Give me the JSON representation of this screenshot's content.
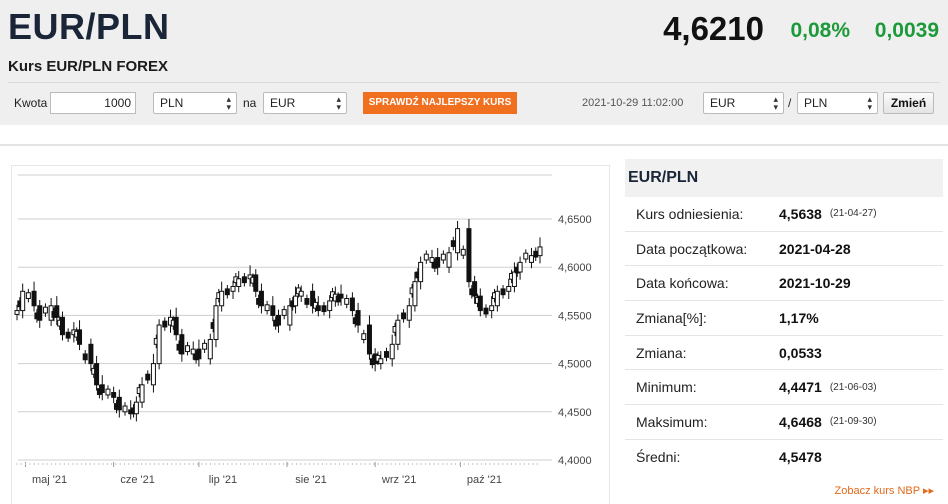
{
  "header": {
    "pair": "EUR/PLN",
    "subtitle": "Kurs EUR/PLN FOREX",
    "rate": "4,6210",
    "change_pct": "0,08%",
    "change_abs": "0,0039"
  },
  "converter": {
    "amount_label": "Kwota",
    "amount_value": "1000",
    "from_currency": "PLN",
    "to_label": "na",
    "to_currency": "EUR",
    "check_button": "SPRAWDŹ NAJLEPSZY KURS",
    "timestamp": "2021-10-29 11:02:00",
    "pair_from": "EUR",
    "pair_sep": "/",
    "pair_to": "PLN",
    "change_button": "Zmień"
  },
  "stats": {
    "title": "EUR/PLN",
    "rows": [
      {
        "label": "Kurs odniesienia:",
        "value": "4,5638",
        "date": "(21-04-27)"
      },
      {
        "label": "Data początkowa:",
        "value": "2021-04-28",
        "date": ""
      },
      {
        "label": "Data końcowa:",
        "value": "2021-10-29",
        "date": ""
      },
      {
        "label": "Zmiana[%]:",
        "value": "1,17%",
        "date": ""
      },
      {
        "label": "Zmiana:",
        "value": "0,0533",
        "date": ""
      },
      {
        "label": "Minimum:",
        "value": "4,4471",
        "date": "(21-06-03)"
      },
      {
        "label": "Maksimum:",
        "value": "4,6468",
        "date": "(21-09-30)"
      },
      {
        "label": "Średni:",
        "value": "4,5478",
        "date": ""
      }
    ],
    "nbp_link": "Zobacz kurs NBP ▸▸"
  },
  "colors": {
    "title": "#1a2538",
    "positive": "#1c9a3a",
    "button_orange": "#f07020",
    "link_orange": "#e06a1a",
    "candle": "#111111"
  },
  "chart_data": {
    "type": "line",
    "subtype": "candlestick",
    "series": [
      {
        "x": [
          "2021-04-28",
          "2021-04-30",
          "2021-05-04",
          "2021-05-06",
          "2021-05-10",
          "2021-05-12",
          "2021-05-14",
          "2021-05-18",
          "2021-05-20",
          "2021-05-24",
          "2021-05-26",
          "2021-05-28",
          "2021-06-01",
          "2021-06-03",
          "2021-06-07",
          "2021-06-09",
          "2021-06-11",
          "2021-06-15",
          "2021-06-17",
          "2021-06-21",
          "2021-06-23",
          "2021-06-25",
          "2021-06-29",
          "2021-07-01",
          "2021-07-05",
          "2021-07-07",
          "2021-07-09",
          "2021-07-13",
          "2021-07-15",
          "2021-07-19",
          "2021-07-21",
          "2021-07-23",
          "2021-07-27",
          "2021-07-29",
          "2021-08-02",
          "2021-08-04",
          "2021-08-06",
          "2021-08-10",
          "2021-08-12",
          "2021-08-16",
          "2021-08-18",
          "2021-08-20",
          "2021-08-24",
          "2021-08-26",
          "2021-08-30",
          "2021-09-01",
          "2021-09-03",
          "2021-09-07",
          "2021-09-09",
          "2021-09-13",
          "2021-09-15",
          "2021-09-17",
          "2021-09-21",
          "2021-09-23",
          "2021-09-27",
          "2021-09-30",
          "2021-10-04",
          "2021-10-06",
          "2021-10-08",
          "2021-10-12",
          "2021-10-14",
          "2021-10-18",
          "2021-10-20",
          "2021-10-22",
          "2021-10-26",
          "2021-10-29"
        ],
        "y": [
          4.555,
          4.575,
          4.56,
          4.545,
          4.56,
          4.548,
          4.53,
          4.535,
          4.52,
          4.5,
          4.478,
          4.47,
          4.465,
          4.452,
          4.448,
          4.46,
          4.478,
          4.5,
          4.54,
          4.548,
          4.53,
          4.51,
          4.515,
          4.505,
          4.525,
          4.56,
          4.575,
          4.58,
          4.588,
          4.592,
          4.575,
          4.56,
          4.55,
          4.54,
          4.56,
          4.57,
          4.575,
          4.56,
          4.555,
          4.565,
          4.572,
          4.568,
          4.555,
          4.54,
          4.51,
          4.5,
          4.505,
          4.52,
          4.545,
          4.56,
          4.585,
          4.605,
          4.61,
          4.6,
          4.615,
          4.64,
          4.585,
          4.57,
          4.555,
          4.56,
          4.575,
          4.58,
          4.595,
          4.605,
          4.612,
          4.621
        ]
      }
    ],
    "xlabel": "",
    "ylabel": "",
    "xticks": [
      "maj '21",
      "cze '21",
      "lip '21",
      "sie '21",
      "wrz '21",
      "paź '21"
    ],
    "yticks": [
      "4,6500",
      "4,6000",
      "4,5500",
      "4,5000",
      "4,4500",
      "4,4000"
    ],
    "ylim": [
      4.4,
      4.65
    ],
    "grid": true
  }
}
